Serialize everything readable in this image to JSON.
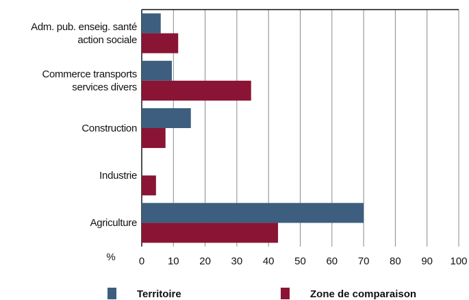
{
  "chart_data": {
    "type": "barh",
    "categories": [
      "Adm. pub. enseig. santé\naction sociale",
      "Commerce transports\nservices divers",
      "Construction",
      "Industrie",
      "Agriculture"
    ],
    "series": [
      {
        "name": "Territoire",
        "color": "#3d5e7e",
        "values": [
          6,
          9.5,
          15.5,
          0,
          70
        ]
      },
      {
        "name": "Zone de comparaison",
        "color": "#8a1434",
        "values": [
          11.5,
          34.5,
          7.5,
          4.5,
          43
        ]
      }
    ],
    "xlabel": "%",
    "xlim": [
      0,
      100
    ],
    "xticks": [
      0,
      10,
      20,
      30,
      40,
      50,
      60,
      70,
      80,
      90,
      100
    ],
    "grid": true
  }
}
